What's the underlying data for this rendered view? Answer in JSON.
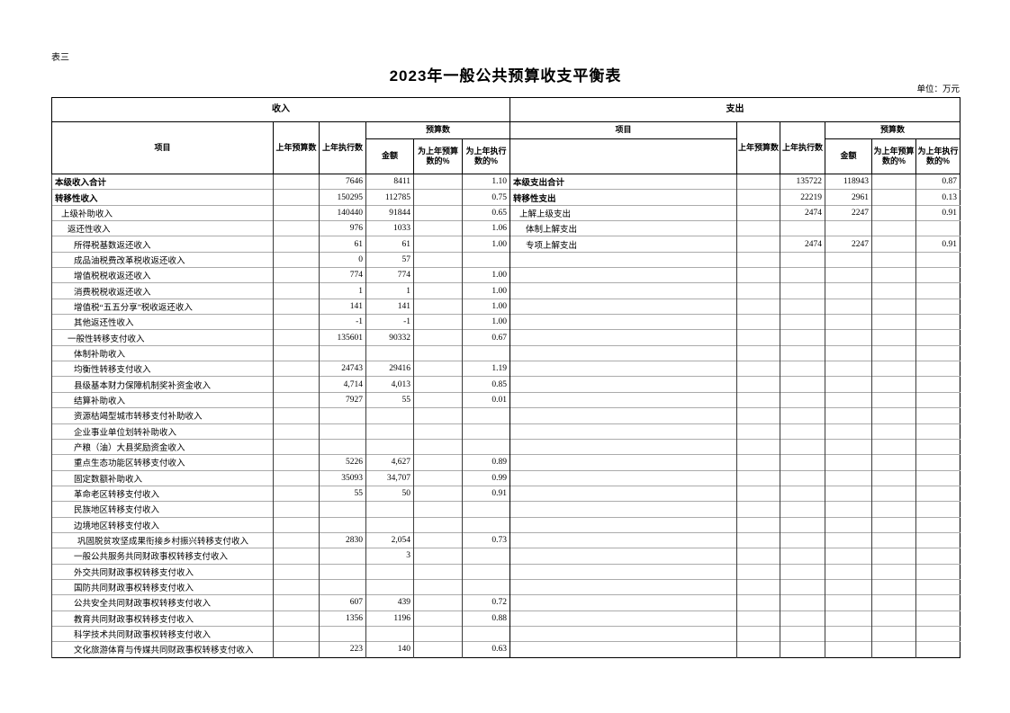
{
  "page": {
    "tag": "表三",
    "title": "2023年一般公共预算收支平衡表",
    "unit": "单位：万元"
  },
  "table": {
    "sections": {
      "revenue": "收入",
      "expenditure": "支出"
    },
    "columns": {
      "item": "项目",
      "prev_budget": "上年预算数",
      "prev_actual": "上年执行数",
      "budget_group": "预算数",
      "amount": "金额",
      "pct_prev_budget": "为上年预算数的%",
      "pct_prev_actual": "为上年执行数的%"
    },
    "revenue_rows": [
      {
        "label": "本级收入合计",
        "indent": 0,
        "bold": true,
        "prev_budget": "",
        "prev_actual": "7646",
        "amount": "8411",
        "pct_prev_budget": "",
        "pct_prev_actual": "1.10"
      },
      {
        "label": "转移性收入",
        "indent": 0,
        "bold": true,
        "prev_budget": "",
        "prev_actual": "150295",
        "amount": "112785",
        "pct_prev_budget": "",
        "pct_prev_actual": "0.75"
      },
      {
        "label": "上级补助收入",
        "indent": 1,
        "bold": false,
        "prev_budget": "",
        "prev_actual": "140440",
        "amount": "91844",
        "pct_prev_budget": "",
        "pct_prev_actual": "0.65"
      },
      {
        "label": "返还性收入",
        "indent": 2,
        "bold": false,
        "prev_budget": "",
        "prev_actual": "976",
        "amount": "1033",
        "pct_prev_budget": "",
        "pct_prev_actual": "1.06"
      },
      {
        "label": "所得税基数返还收入",
        "indent": 3,
        "bold": false,
        "prev_budget": "",
        "prev_actual": "61",
        "amount": "61",
        "pct_prev_budget": "",
        "pct_prev_actual": "1.00"
      },
      {
        "label": "成品油税费改革税收返还收入",
        "indent": 3,
        "bold": false,
        "prev_budget": "",
        "prev_actual": "0",
        "amount": "57",
        "pct_prev_budget": "",
        "pct_prev_actual": ""
      },
      {
        "label": "增值税税收返还收入",
        "indent": 3,
        "bold": false,
        "prev_budget": "",
        "prev_actual": "774",
        "amount": "774",
        "pct_prev_budget": "",
        "pct_prev_actual": "1.00"
      },
      {
        "label": "消费税税收返还收入",
        "indent": 3,
        "bold": false,
        "prev_budget": "",
        "prev_actual": "1",
        "amount": "1",
        "pct_prev_budget": "",
        "pct_prev_actual": "1.00"
      },
      {
        "label": "增值税“五五分享”税收返还收入",
        "indent": 3,
        "bold": false,
        "prev_budget": "",
        "prev_actual": "141",
        "amount": "141",
        "pct_prev_budget": "",
        "pct_prev_actual": "1.00"
      },
      {
        "label": "其他返还性收入",
        "indent": 3,
        "bold": false,
        "prev_budget": "",
        "prev_actual": "-1",
        "amount": "-1",
        "pct_prev_budget": "",
        "pct_prev_actual": "1.00"
      },
      {
        "label": "一般性转移支付收入",
        "indent": 2,
        "bold": false,
        "prev_budget": "",
        "prev_actual": "135601",
        "amount": "90332",
        "pct_prev_budget": "",
        "pct_prev_actual": "0.67"
      },
      {
        "label": "体制补助收入",
        "indent": 3,
        "bold": false,
        "prev_budget": "",
        "prev_actual": "",
        "amount": "",
        "pct_prev_budget": "",
        "pct_prev_actual": ""
      },
      {
        "label": "均衡性转移支付收入",
        "indent": 3,
        "bold": false,
        "prev_budget": "",
        "prev_actual": "24743",
        "amount": "29416",
        "pct_prev_budget": "",
        "pct_prev_actual": "1.19"
      },
      {
        "label": "县级基本财力保障机制奖补资金收入",
        "indent": 3,
        "bold": false,
        "prev_budget": "",
        "prev_actual": "4,714",
        "amount": "4,013",
        "pct_prev_budget": "",
        "pct_prev_actual": "0.85"
      },
      {
        "label": "结算补助收入",
        "indent": 3,
        "bold": false,
        "prev_budget": "",
        "prev_actual": "7927",
        "amount": "55",
        "pct_prev_budget": "",
        "pct_prev_actual": "0.01"
      },
      {
        "label": "资源枯竭型城市转移支付补助收入",
        "indent": 3,
        "bold": false,
        "prev_budget": "",
        "prev_actual": "",
        "amount": "",
        "pct_prev_budget": "",
        "pct_prev_actual": ""
      },
      {
        "label": "企业事业单位划转补助收入",
        "indent": 3,
        "bold": false,
        "prev_budget": "",
        "prev_actual": "",
        "amount": "",
        "pct_prev_budget": "",
        "pct_prev_actual": ""
      },
      {
        "label": "产粮（油）大县奖励资金收入",
        "indent": 3,
        "bold": false,
        "prev_budget": "",
        "prev_actual": "",
        "amount": "",
        "pct_prev_budget": "",
        "pct_prev_actual": ""
      },
      {
        "label": "重点生态功能区转移支付收入",
        "indent": 3,
        "bold": false,
        "prev_budget": "",
        "prev_actual": "5226",
        "amount": "4,627",
        "pct_prev_budget": "",
        "pct_prev_actual": "0.89"
      },
      {
        "label": "固定数额补助收入",
        "indent": 3,
        "bold": false,
        "prev_budget": "",
        "prev_actual": "35093",
        "amount": "34,707",
        "pct_prev_budget": "",
        "pct_prev_actual": "0.99"
      },
      {
        "label": "革命老区转移支付收入",
        "indent": 3,
        "bold": false,
        "prev_budget": "",
        "prev_actual": "55",
        "amount": "50",
        "pct_prev_budget": "",
        "pct_prev_actual": "0.91"
      },
      {
        "label": "民族地区转移支付收入",
        "indent": 3,
        "bold": false,
        "prev_budget": "",
        "prev_actual": "",
        "amount": "",
        "pct_prev_budget": "",
        "pct_prev_actual": ""
      },
      {
        "label": "边境地区转移支付收入",
        "indent": 3,
        "bold": false,
        "prev_budget": "",
        "prev_actual": "",
        "amount": "",
        "pct_prev_budget": "",
        "pct_prev_actual": ""
      },
      {
        "label": "巩固脱贫攻坚成果衔接乡村振兴转移支付收入",
        "indent": 4,
        "bold": false,
        "prev_budget": "",
        "prev_actual": "2830",
        "amount": "2,054",
        "pct_prev_budget": "",
        "pct_prev_actual": "0.73"
      },
      {
        "label": "一般公共服务共同财政事权转移支付收入",
        "indent": 3,
        "bold": false,
        "prev_budget": "",
        "prev_actual": "",
        "amount": "3",
        "pct_prev_budget": "",
        "pct_prev_actual": ""
      },
      {
        "label": "外交共同财政事权转移支付收入",
        "indent": 3,
        "bold": false,
        "prev_budget": "",
        "prev_actual": "",
        "amount": "",
        "pct_prev_budget": "",
        "pct_prev_actual": ""
      },
      {
        "label": "国防共同财政事权转移支付收入",
        "indent": 3,
        "bold": false,
        "prev_budget": "",
        "prev_actual": "",
        "amount": "",
        "pct_prev_budget": "",
        "pct_prev_actual": ""
      },
      {
        "label": "公共安全共同财政事权转移支付收入",
        "indent": 3,
        "bold": false,
        "prev_budget": "",
        "prev_actual": "607",
        "amount": "439",
        "pct_prev_budget": "",
        "pct_prev_actual": "0.72"
      },
      {
        "label": "教育共同财政事权转移支付收入",
        "indent": 3,
        "bold": false,
        "prev_budget": "",
        "prev_actual": "1356",
        "amount": "1196",
        "pct_prev_budget": "",
        "pct_prev_actual": "0.88"
      },
      {
        "label": "科学技术共同财政事权转移支付收入",
        "indent": 3,
        "bold": false,
        "prev_budget": "",
        "prev_actual": "",
        "amount": "",
        "pct_prev_budget": "",
        "pct_prev_actual": ""
      },
      {
        "label": "文化旅游体育与传媒共同财政事权转移支付收入",
        "indent": 3,
        "bold": false,
        "prev_budget": "",
        "prev_actual": "223",
        "amount": "140",
        "pct_prev_budget": "",
        "pct_prev_actual": "0.63"
      }
    ],
    "expenditure_rows": [
      {
        "label": "本级支出合计",
        "indent": 0,
        "bold": true,
        "prev_budget": "",
        "prev_actual": "135722",
        "amount": "118943",
        "pct_prev_budget": "",
        "pct_prev_actual": "0.87"
      },
      {
        "label": "转移性支出",
        "indent": 0,
        "bold": true,
        "prev_budget": "",
        "prev_actual": "22219",
        "amount": "2961",
        "pct_prev_budget": "",
        "pct_prev_actual": "0.13"
      },
      {
        "label": "上解上级支出",
        "indent": 1,
        "bold": false,
        "prev_budget": "",
        "prev_actual": "2474",
        "amount": "2247",
        "pct_prev_budget": "",
        "pct_prev_actual": "0.91"
      },
      {
        "label": "体制上解支出",
        "indent": 2,
        "bold": false,
        "prev_budget": "",
        "prev_actual": "",
        "amount": "",
        "pct_prev_budget": "",
        "pct_prev_actual": ""
      },
      {
        "label": "专项上解支出",
        "indent": 2,
        "bold": false,
        "prev_budget": "",
        "prev_actual": "2474",
        "amount": "2247",
        "pct_prev_budget": "",
        "pct_prev_actual": "0.91"
      }
    ]
  }
}
